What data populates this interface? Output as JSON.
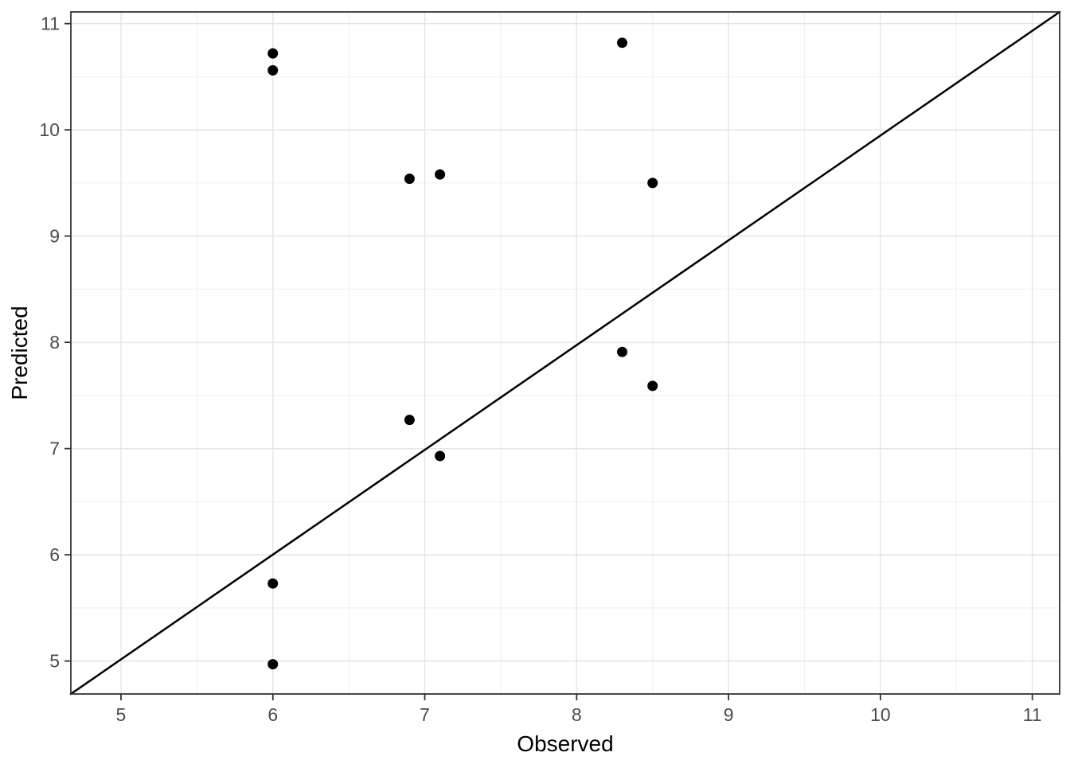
{
  "chart_data": {
    "type": "scatter",
    "title": "",
    "xlabel": "Observed",
    "ylabel": "Predicted",
    "xlim": [
      4.67,
      11.18
    ],
    "ylim": [
      4.69,
      11.11
    ],
    "x_ticks": [
      5,
      6,
      7,
      8,
      9,
      10,
      11
    ],
    "y_ticks": [
      5,
      6,
      7,
      8,
      9,
      10,
      11
    ],
    "x_minor_ticks": [
      5.5,
      6.5,
      7.5,
      8.5,
      9.5,
      10.5
    ],
    "y_minor_ticks": [
      5.5,
      6.5,
      7.5,
      8.5,
      9.5,
      10.5
    ],
    "grid": "major+minor",
    "legend_position": "none",
    "reference_line": {
      "type": "identity",
      "equation": "y = x"
    },
    "points": [
      {
        "x": 6.0,
        "y": 10.72
      },
      {
        "x": 6.0,
        "y": 10.56
      },
      {
        "x": 8.3,
        "y": 10.82
      },
      {
        "x": 6.9,
        "y": 9.54
      },
      {
        "x": 7.1,
        "y": 9.58
      },
      {
        "x": 8.5,
        "y": 9.5
      },
      {
        "x": 8.3,
        "y": 7.91
      },
      {
        "x": 8.5,
        "y": 7.59
      },
      {
        "x": 6.9,
        "y": 7.27
      },
      {
        "x": 7.1,
        "y": 6.93
      },
      {
        "x": 6.0,
        "y": 5.73
      },
      {
        "x": 6.0,
        "y": 4.97
      }
    ],
    "style": {
      "background": "#ffffff",
      "panel_background": "#ffffff",
      "panel_border_color": "#333333",
      "grid_major_color": "#e5e5e5",
      "grid_minor_color": "#f2f2f2",
      "tick_color": "#333333",
      "tick_label_color": "#4d4d4d",
      "axis_title_color": "#000000",
      "point_color": "#000000",
      "line_color": "#000000"
    }
  }
}
